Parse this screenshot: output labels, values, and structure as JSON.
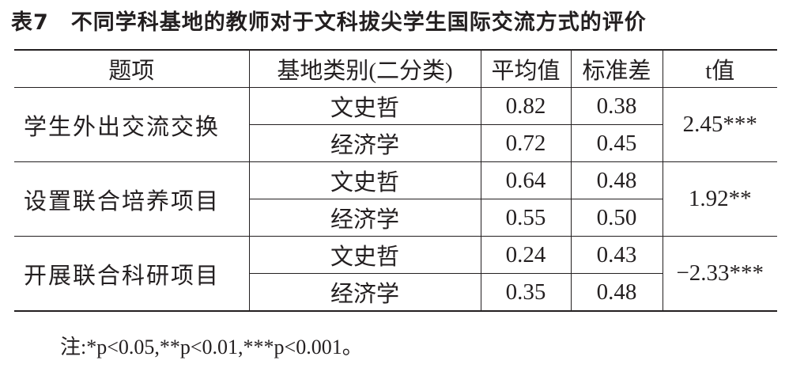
{
  "title": "表7　不同学科基地的教师对于文科拔尖学生国际交流方式的评价",
  "table": {
    "header": [
      "题项",
      "基地类别(二分类)",
      "平均值",
      "标准差",
      "t值"
    ],
    "groups": [
      {
        "item": "学生外出交流交换",
        "t": "2.45***",
        "rows": [
          {
            "category": "文史哲",
            "mean": "0.82",
            "sd": "0.38"
          },
          {
            "category": "经济学",
            "mean": "0.72",
            "sd": "0.45"
          }
        ]
      },
      {
        "item": "设置联合培养项目",
        "t": "1.92**",
        "rows": [
          {
            "category": "文史哲",
            "mean": "0.64",
            "sd": "0.48"
          },
          {
            "category": "经济学",
            "mean": "0.55",
            "sd": "0.50"
          }
        ]
      },
      {
        "item": "开展联合科研项目",
        "t": "−2.33***",
        "rows": [
          {
            "category": "文史哲",
            "mean": "0.24",
            "sd": "0.43"
          },
          {
            "category": "经济学",
            "mean": "0.35",
            "sd": "0.48"
          }
        ]
      }
    ]
  },
  "note": "注:*p<0.05,**p<0.01,***p<0.001。"
}
